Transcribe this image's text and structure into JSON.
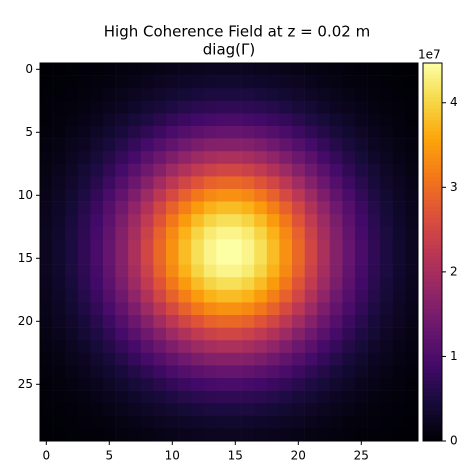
{
  "chart_data": {
    "type": "heatmap",
    "title": "High Coherence Field at z = 0.02 m",
    "subtitle": "diag(Γ)",
    "colormap": "inferno",
    "xlim": [
      -0.5,
      29.5
    ],
    "ylim": [
      29.5,
      -0.5
    ],
    "xticks": [
      0,
      5,
      10,
      15,
      20,
      25
    ],
    "yticks": [
      0,
      5,
      10,
      15,
      20,
      25
    ],
    "colorbar": {
      "lim": [
        0,
        4.47
      ],
      "ticks": [
        0,
        1,
        2,
        3,
        4
      ],
      "offset_label": "1e7"
    },
    "values": [
      [
        0.01,
        0.02,
        0.03,
        0.04,
        0.05,
        0.07,
        0.09,
        0.11,
        0.13,
        0.16,
        0.18,
        0.2,
        0.22,
        0.24,
        0.24,
        0.24,
        0.24,
        0.22,
        0.2,
        0.18,
        0.16,
        0.13,
        0.11,
        0.09,
        0.07,
        0.05,
        0.04,
        0.03,
        0.02,
        0.01
      ],
      [
        0.02,
        0.03,
        0.04,
        0.06,
        0.08,
        0.1,
        0.13,
        0.16,
        0.2,
        0.24,
        0.27,
        0.3,
        0.33,
        0.35,
        0.36,
        0.36,
        0.35,
        0.33,
        0.3,
        0.27,
        0.24,
        0.2,
        0.16,
        0.13,
        0.1,
        0.08,
        0.06,
        0.04,
        0.03,
        0.02
      ],
      [
        0.03,
        0.04,
        0.06,
        0.08,
        0.11,
        0.15,
        0.19,
        0.24,
        0.29,
        0.34,
        0.39,
        0.43,
        0.47,
        0.5,
        0.51,
        0.51,
        0.5,
        0.47,
        0.43,
        0.39,
        0.34,
        0.29,
        0.24,
        0.19,
        0.15,
        0.11,
        0.08,
        0.06,
        0.04,
        0.03
      ],
      [
        0.04,
        0.06,
        0.08,
        0.11,
        0.16,
        0.2,
        0.26,
        0.33,
        0.4,
        0.47,
        0.54,
        0.6,
        0.66,
        0.69,
        0.71,
        0.71,
        0.69,
        0.66,
        0.6,
        0.54,
        0.47,
        0.4,
        0.33,
        0.26,
        0.2,
        0.16,
        0.11,
        0.08,
        0.06,
        0.04
      ],
      [
        0.05,
        0.08,
        0.11,
        0.16,
        0.21,
        0.28,
        0.36,
        0.45,
        0.54,
        0.64,
        0.73,
        0.82,
        0.89,
        0.94,
        0.97,
        0.97,
        0.94,
        0.89,
        0.82,
        0.73,
        0.64,
        0.54,
        0.45,
        0.36,
        0.28,
        0.21,
        0.16,
        0.11,
        0.08,
        0.05
      ],
      [
        0.07,
        0.1,
        0.15,
        0.2,
        0.28,
        0.37,
        0.47,
        0.59,
        0.71,
        0.84,
        0.97,
        1.08,
        1.18,
        1.25,
        1.28,
        1.28,
        1.25,
        1.18,
        1.08,
        0.97,
        0.84,
        0.71,
        0.59,
        0.47,
        0.37,
        0.28,
        0.2,
        0.15,
        0.1,
        0.07
      ],
      [
        0.09,
        0.13,
        0.19,
        0.26,
        0.36,
        0.47,
        0.6,
        0.76,
        0.92,
        1.08,
        1.25,
        1.39,
        1.51,
        1.6,
        1.64,
        1.64,
        1.6,
        1.51,
        1.39,
        1.25,
        1.08,
        0.92,
        0.76,
        0.6,
        0.47,
        0.36,
        0.26,
        0.19,
        0.13,
        0.09
      ],
      [
        0.11,
        0.16,
        0.24,
        0.33,
        0.45,
        0.59,
        0.76,
        0.94,
        1.15,
        1.35,
        1.56,
        1.74,
        1.89,
        2.0,
        2.05,
        2.05,
        2.0,
        1.89,
        1.74,
        1.56,
        1.35,
        1.15,
        0.94,
        0.76,
        0.59,
        0.45,
        0.33,
        0.24,
        0.16,
        0.11
      ],
      [
        0.13,
        0.2,
        0.29,
        0.4,
        0.54,
        0.71,
        0.92,
        1.15,
        1.39,
        1.64,
        1.89,
        2.11,
        2.29,
        2.43,
        2.49,
        2.49,
        2.43,
        2.29,
        2.11,
        1.89,
        1.64,
        1.39,
        1.15,
        0.92,
        0.71,
        0.54,
        0.4,
        0.29,
        0.2,
        0.13
      ],
      [
        0.16,
        0.24,
        0.34,
        0.47,
        0.64,
        0.84,
        1.08,
        1.35,
        1.64,
        1.94,
        2.23,
        2.49,
        2.71,
        2.87,
        2.95,
        2.95,
        2.87,
        2.71,
        2.49,
        2.23,
        1.94,
        1.64,
        1.35,
        1.08,
        0.84,
        0.64,
        0.47,
        0.34,
        0.24,
        0.16
      ],
      [
        0.18,
        0.27,
        0.39,
        0.54,
        0.73,
        0.97,
        1.25,
        1.56,
        1.89,
        2.23,
        2.56,
        2.87,
        3.11,
        3.29,
        3.38,
        3.38,
        3.29,
        3.11,
        2.87,
        2.56,
        2.23,
        1.89,
        1.56,
        1.25,
        0.97,
        0.73,
        0.54,
        0.39,
        0.27,
        0.18
      ],
      [
        0.2,
        0.3,
        0.43,
        0.6,
        0.82,
        1.08,
        1.39,
        1.74,
        2.11,
        2.49,
        2.87,
        3.2,
        3.48,
        3.68,
        3.78,
        3.78,
        3.68,
        3.48,
        3.2,
        2.87,
        2.49,
        2.11,
        1.74,
        1.39,
        1.08,
        0.82,
        0.6,
        0.43,
        0.3,
        0.2
      ],
      [
        0.22,
        0.33,
        0.47,
        0.66,
        0.89,
        1.18,
        1.51,
        1.89,
        2.29,
        2.71,
        3.11,
        3.48,
        3.78,
        4.0,
        4.11,
        4.11,
        4.0,
        3.78,
        3.48,
        3.11,
        2.71,
        2.29,
        1.89,
        1.51,
        1.18,
        0.89,
        0.66,
        0.47,
        0.33,
        0.22
      ],
      [
        0.24,
        0.35,
        0.5,
        0.69,
        0.94,
        1.25,
        1.6,
        2.0,
        2.43,
        2.87,
        3.29,
        3.68,
        4.0,
        4.23,
        4.35,
        4.35,
        4.23,
        4.0,
        3.68,
        3.29,
        2.87,
        2.43,
        2.0,
        1.6,
        1.25,
        0.94,
        0.69,
        0.5,
        0.35,
        0.24
      ],
      [
        0.24,
        0.36,
        0.51,
        0.71,
        0.97,
        1.28,
        1.64,
        2.05,
        2.49,
        2.95,
        3.38,
        3.78,
        4.11,
        4.35,
        4.47,
        4.47,
        4.35,
        4.11,
        3.78,
        3.38,
        2.95,
        2.49,
        2.05,
        1.64,
        1.28,
        0.97,
        0.71,
        0.51,
        0.36,
        0.24
      ],
      [
        0.24,
        0.36,
        0.51,
        0.71,
        0.97,
        1.28,
        1.64,
        2.05,
        2.49,
        2.95,
        3.38,
        3.78,
        4.11,
        4.35,
        4.47,
        4.47,
        4.35,
        4.11,
        3.78,
        3.38,
        2.95,
        2.49,
        2.05,
        1.64,
        1.28,
        0.97,
        0.71,
        0.51,
        0.36,
        0.24
      ],
      [
        0.24,
        0.35,
        0.5,
        0.69,
        0.94,
        1.25,
        1.6,
        2.0,
        2.43,
        2.87,
        3.29,
        3.68,
        4.0,
        4.23,
        4.35,
        4.35,
        4.23,
        4.0,
        3.68,
        3.29,
        2.87,
        2.43,
        2.0,
        1.6,
        1.25,
        0.94,
        0.69,
        0.5,
        0.35,
        0.24
      ],
      [
        0.22,
        0.33,
        0.47,
        0.66,
        0.89,
        1.18,
        1.51,
        1.89,
        2.29,
        2.71,
        3.11,
        3.48,
        3.78,
        4.0,
        4.11,
        4.11,
        4.0,
        3.78,
        3.48,
        3.11,
        2.71,
        2.29,
        1.89,
        1.51,
        1.18,
        0.89,
        0.66,
        0.47,
        0.33,
        0.22
      ],
      [
        0.2,
        0.3,
        0.43,
        0.6,
        0.82,
        1.08,
        1.39,
        1.74,
        2.11,
        2.49,
        2.87,
        3.2,
        3.48,
        3.68,
        3.78,
        3.78,
        3.68,
        3.48,
        3.2,
        2.87,
        2.49,
        2.11,
        1.74,
        1.39,
        1.08,
        0.82,
        0.6,
        0.43,
        0.3,
        0.2
      ],
      [
        0.18,
        0.27,
        0.39,
        0.54,
        0.73,
        0.97,
        1.25,
        1.56,
        1.89,
        2.23,
        2.56,
        2.87,
        3.11,
        3.29,
        3.38,
        3.38,
        3.29,
        3.11,
        2.87,
        2.56,
        2.23,
        1.89,
        1.56,
        1.25,
        0.97,
        0.73,
        0.54,
        0.39,
        0.27,
        0.18
      ],
      [
        0.16,
        0.24,
        0.34,
        0.47,
        0.64,
        0.84,
        1.08,
        1.35,
        1.64,
        1.94,
        2.23,
        2.49,
        2.71,
        2.87,
        2.95,
        2.95,
        2.87,
        2.71,
        2.49,
        2.23,
        1.94,
        1.64,
        1.35,
        1.08,
        0.84,
        0.64,
        0.47,
        0.34,
        0.24,
        0.16
      ],
      [
        0.13,
        0.2,
        0.29,
        0.4,
        0.54,
        0.71,
        0.92,
        1.15,
        1.39,
        1.64,
        1.89,
        2.11,
        2.29,
        2.43,
        2.49,
        2.49,
        2.43,
        2.29,
        2.11,
        1.89,
        1.64,
        1.39,
        1.15,
        0.92,
        0.71,
        0.54,
        0.4,
        0.29,
        0.2,
        0.13
      ],
      [
        0.11,
        0.16,
        0.24,
        0.33,
        0.45,
        0.59,
        0.76,
        0.94,
        1.15,
        1.35,
        1.56,
        1.74,
        1.89,
        2.0,
        2.05,
        2.05,
        2.0,
        1.89,
        1.74,
        1.56,
        1.35,
        1.15,
        0.94,
        0.76,
        0.59,
        0.45,
        0.33,
        0.24,
        0.16,
        0.11
      ],
      [
        0.09,
        0.13,
        0.19,
        0.26,
        0.36,
        0.47,
        0.6,
        0.76,
        0.92,
        1.08,
        1.25,
        1.39,
        1.51,
        1.6,
        1.64,
        1.64,
        1.6,
        1.51,
        1.39,
        1.25,
        1.08,
        0.92,
        0.76,
        0.6,
        0.47,
        0.36,
        0.26,
        0.19,
        0.13,
        0.09
      ],
      [
        0.07,
        0.1,
        0.15,
        0.2,
        0.28,
        0.37,
        0.47,
        0.59,
        0.71,
        0.84,
        0.97,
        1.08,
        1.18,
        1.25,
        1.28,
        1.28,
        1.25,
        1.18,
        1.08,
        0.97,
        0.84,
        0.71,
        0.59,
        0.47,
        0.37,
        0.28,
        0.2,
        0.15,
        0.1,
        0.07
      ],
      [
        0.05,
        0.08,
        0.11,
        0.16,
        0.21,
        0.28,
        0.36,
        0.45,
        0.54,
        0.64,
        0.73,
        0.82,
        0.89,
        0.94,
        0.97,
        0.97,
        0.94,
        0.89,
        0.82,
        0.73,
        0.64,
        0.54,
        0.45,
        0.36,
        0.28,
        0.21,
        0.16,
        0.11,
        0.08,
        0.05
      ],
      [
        0.04,
        0.06,
        0.08,
        0.11,
        0.16,
        0.2,
        0.26,
        0.33,
        0.4,
        0.47,
        0.54,
        0.6,
        0.66,
        0.69,
        0.71,
        0.71,
        0.69,
        0.66,
        0.6,
        0.54,
        0.47,
        0.4,
        0.33,
        0.26,
        0.2,
        0.16,
        0.11,
        0.08,
        0.06,
        0.04
      ],
      [
        0.03,
        0.04,
        0.06,
        0.08,
        0.11,
        0.15,
        0.19,
        0.24,
        0.29,
        0.34,
        0.39,
        0.43,
        0.47,
        0.5,
        0.51,
        0.51,
        0.5,
        0.47,
        0.43,
        0.39,
        0.34,
        0.29,
        0.24,
        0.19,
        0.15,
        0.11,
        0.08,
        0.06,
        0.04,
        0.03
      ],
      [
        0.02,
        0.03,
        0.04,
        0.06,
        0.08,
        0.1,
        0.13,
        0.16,
        0.2,
        0.24,
        0.27,
        0.3,
        0.33,
        0.35,
        0.36,
        0.36,
        0.35,
        0.33,
        0.3,
        0.27,
        0.24,
        0.2,
        0.16,
        0.13,
        0.1,
        0.08,
        0.06,
        0.04,
        0.03,
        0.02
      ],
      [
        0.01,
        0.02,
        0.03,
        0.04,
        0.05,
        0.07,
        0.09,
        0.11,
        0.13,
        0.16,
        0.18,
        0.2,
        0.22,
        0.24,
        0.24,
        0.24,
        0.24,
        0.22,
        0.2,
        0.18,
        0.16,
        0.13,
        0.11,
        0.09,
        0.07,
        0.05,
        0.04,
        0.03,
        0.02,
        0.01
      ]
    ]
  }
}
